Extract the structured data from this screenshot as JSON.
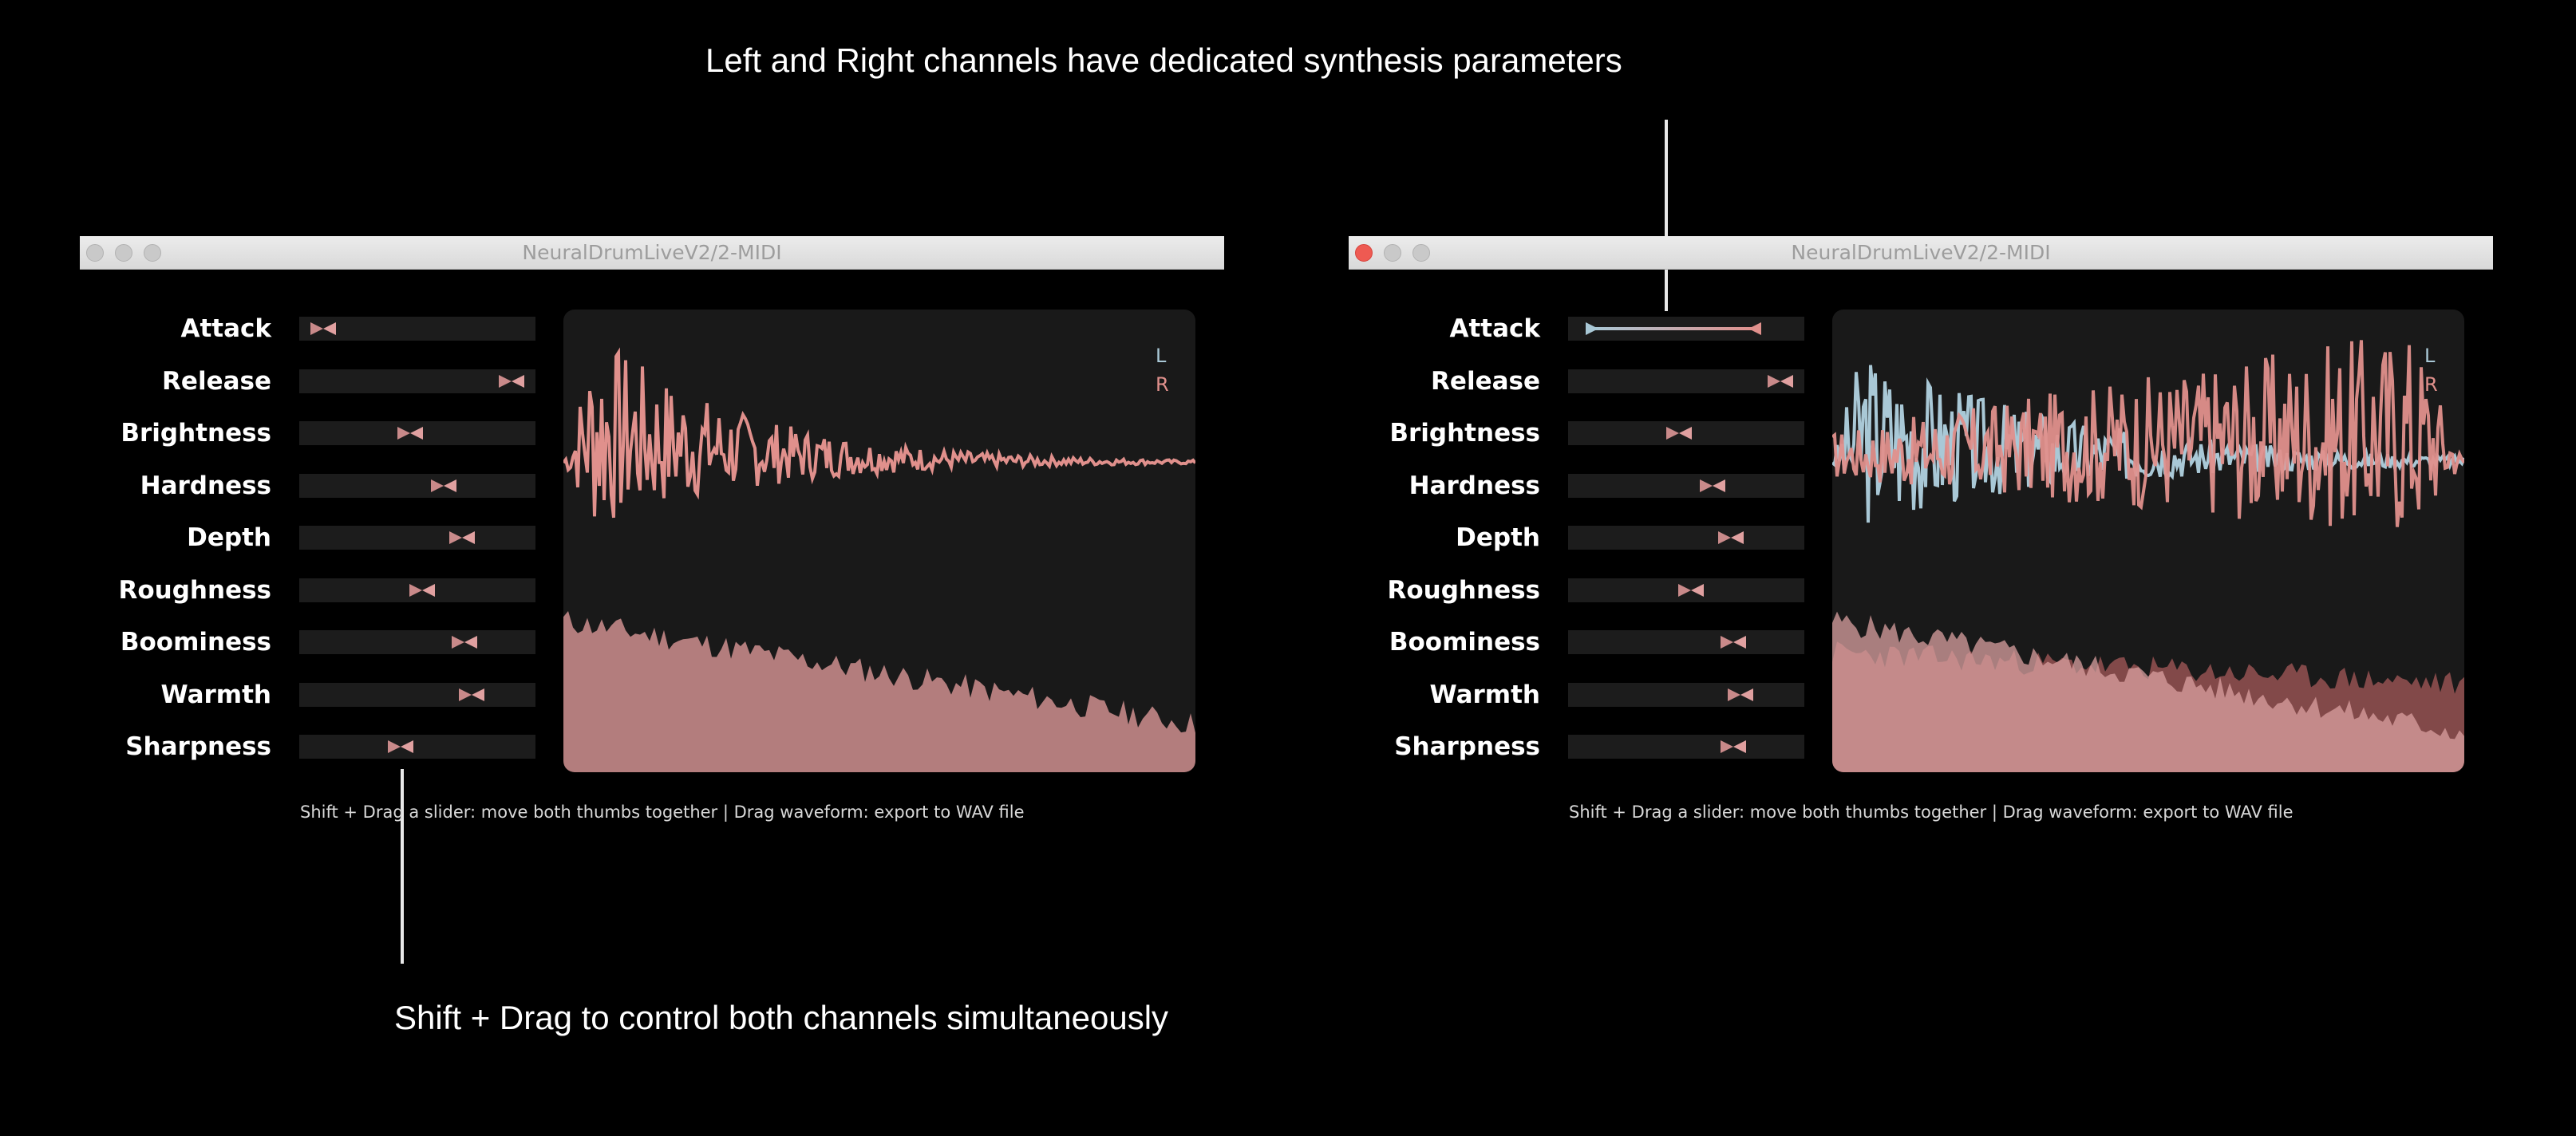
{
  "captions": {
    "top": "Left and Right channels have dedicated synthesis parameters",
    "bottom": "Shift + Drag to control both channels simultaneously"
  },
  "colors": {
    "left_channel": "#a9c8d6",
    "right_channel": "#e0908c"
  },
  "windows": [
    {
      "title": "NeuralDrumLiveV2/2-MIDI",
      "active": false,
      "legend": {
        "left": "L",
        "right": "R"
      },
      "hint": "Shift + Drag a slider: move both thumbs together   |   Drag waveform: export to WAV file",
      "params": [
        {
          "label": "Attack",
          "left": 0.1,
          "right": 0.1
        },
        {
          "label": "Release",
          "left": 0.9,
          "right": 0.9
        },
        {
          "label": "Brightness",
          "left": 0.47,
          "right": 0.47
        },
        {
          "label": "Hardness",
          "left": 0.61,
          "right": 0.61
        },
        {
          "label": "Depth",
          "left": 0.69,
          "right": 0.69
        },
        {
          "label": "Roughness",
          "left": 0.52,
          "right": 0.52
        },
        {
          "label": "Boominess",
          "left": 0.7,
          "right": 0.7
        },
        {
          "label": "Warmth",
          "left": 0.73,
          "right": 0.73
        },
        {
          "label": "Sharpness",
          "left": 0.43,
          "right": 0.43
        }
      ]
    },
    {
      "title": "NeuralDrumLiveV2/2-MIDI",
      "active": true,
      "legend": {
        "left": "L",
        "right": "R"
      },
      "hint": "Shift + Drag a slider: move both thumbs together   |   Drag waveform: export to WAV file",
      "params": [
        {
          "label": "Attack",
          "left": 0.1,
          "right": 0.79
        },
        {
          "label": "Release",
          "left": 0.9,
          "right": 0.9
        },
        {
          "label": "Brightness",
          "left": 0.47,
          "right": 0.47
        },
        {
          "label": "Hardness",
          "left": 0.61,
          "right": 0.61
        },
        {
          "label": "Depth",
          "left": 0.69,
          "right": 0.69
        },
        {
          "label": "Roughness",
          "left": 0.52,
          "right": 0.52
        },
        {
          "label": "Boominess",
          "left": 0.7,
          "right": 0.7
        },
        {
          "label": "Warmth",
          "left": 0.73,
          "right": 0.73
        },
        {
          "label": "Sharpness",
          "left": 0.7,
          "right": 0.7
        }
      ]
    }
  ]
}
